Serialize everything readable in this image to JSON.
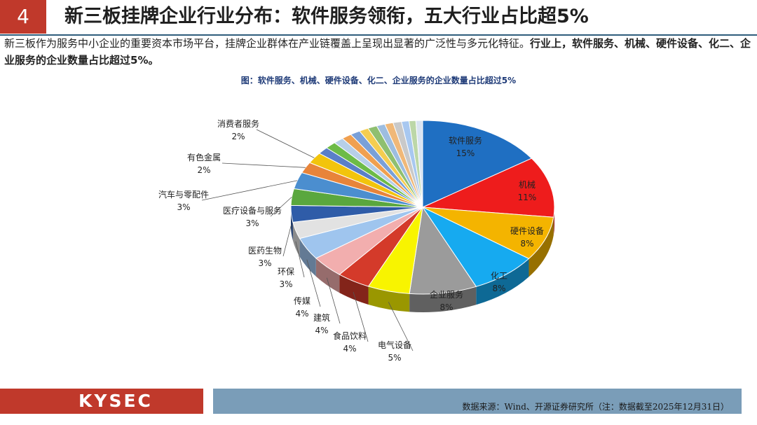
{
  "header": {
    "number": "4",
    "title": "新三板挂牌企业行业分布：软件服务领衔，五大行业占比超5%"
  },
  "intro": {
    "normal": "新三板作为服务中小企业的重要资本市场平台，挂牌企业群体在产业链覆盖上呈现出显著的广泛性与多元化特征。",
    "bold": "行业上，软件服务、机械、硬件设备、化二、企业服务的企业数量占比超过5%。"
  },
  "figure_caption": "图：软件服务、机械、硬件设备、化二、企业服务的企业数量占比超过5%",
  "footer": {
    "logo_text": "KYSEC",
    "source": "数据来源：Wind、开源证券研究所（注：数据截至2025年12月31日）"
  },
  "chart_data": {
    "type": "pie",
    "title": "",
    "slices": [
      {
        "label": "软件服务",
        "value_label": "15%",
        "value": 15,
        "color": "#1f6fc2"
      },
      {
        "label": "机械",
        "value_label": "11%",
        "value": 11,
        "color": "#ee1c1c"
      },
      {
        "label": "硬件设备",
        "value_label": "8%",
        "value": 8,
        "color": "#f4b400"
      },
      {
        "label": "化工",
        "value_label": "8%",
        "value": 8,
        "color": "#16aaf0"
      },
      {
        "label": "企业服务",
        "value_label": "8%",
        "value": 8,
        "color": "#9b9b9b"
      },
      {
        "label": "电气设备",
        "value_label": "5%",
        "value": 5,
        "color": "#f8f400"
      },
      {
        "label": "食品饮料",
        "value_label": "4%",
        "value": 4,
        "color": "#d43a2a"
      },
      {
        "label": "建筑",
        "value_label": "4%",
        "value": 4,
        "color": "#f2aeae"
      },
      {
        "label": "传媒",
        "value_label": "4%",
        "value": 4,
        "color": "#9fc5ee"
      },
      {
        "label": "环保",
        "value_label": "3%",
        "value": 3,
        "color": "#e2e2e2"
      },
      {
        "label": "医药生物",
        "value_label": "3%",
        "value": 3,
        "color": "#2f5ca8"
      },
      {
        "label": "医疗设备与服务",
        "value_label": "3%",
        "value": 3,
        "color": "#5aa73e"
      },
      {
        "label": "汽车与零配件",
        "value_label": "3%",
        "value": 3,
        "color": "#4b8ecf"
      },
      {
        "label": "有色金属",
        "value_label": "2%",
        "value": 2,
        "color": "#e8843a"
      },
      {
        "label": "消费者服务",
        "value_label": "2%",
        "value": 2,
        "color": "#f2c40c"
      },
      {
        "label": "",
        "value_label": "",
        "value": 1.3,
        "color": "#5a7fc8"
      },
      {
        "label": "",
        "value_label": "",
        "value": 1.3,
        "color": "#6dbb47"
      },
      {
        "label": "",
        "value_label": "",
        "value": 1.2,
        "color": "#b7cfe8"
      },
      {
        "label": "",
        "value_label": "",
        "value": 1.2,
        "color": "#f0a050"
      },
      {
        "label": "",
        "value_label": "",
        "value": 1.2,
        "color": "#7aa0d8"
      },
      {
        "label": "",
        "value_label": "",
        "value": 1.1,
        "color": "#f5cd50"
      },
      {
        "label": "",
        "value_label": "",
        "value": 1.1,
        "color": "#8fbf70"
      },
      {
        "label": "",
        "value_label": "",
        "value": 1.0,
        "color": "#9dbde0"
      },
      {
        "label": "",
        "value_label": "",
        "value": 1.0,
        "color": "#f0b878"
      },
      {
        "label": "",
        "value_label": "",
        "value": 1.0,
        "color": "#c9c9c9"
      },
      {
        "label": "",
        "value_label": "",
        "value": 0.9,
        "color": "#a8c8f0"
      },
      {
        "label": "",
        "value_label": "",
        "value": 0.8,
        "color": "#bcd7a8"
      },
      {
        "label": "",
        "value_label": "",
        "value": 0.8,
        "color": "#d9e4f2"
      }
    ]
  }
}
